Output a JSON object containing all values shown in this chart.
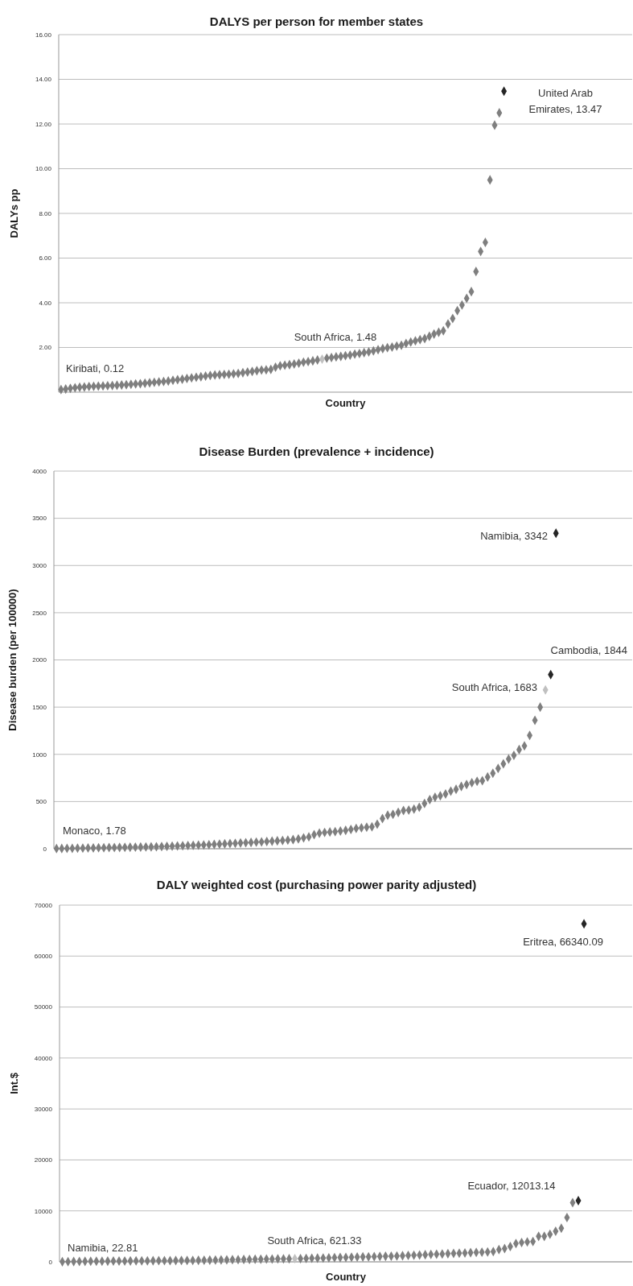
{
  "chart_data": [
    {
      "type": "scatter",
      "title": "DALYS per person for member states",
      "xlabel": "Country",
      "ylabel": "DALYs pp",
      "marker": "diamond",
      "grid": "y",
      "tick_labels": "y",
      "ylim": [
        0,
        16
      ],
      "yticks": [
        {
          "value": 2,
          "label": "2.00"
        },
        {
          "value": 4,
          "label": "4.00"
        },
        {
          "value": 6,
          "label": "6.00"
        },
        {
          "value": 8,
          "label": "8.00"
        },
        {
          "value": 10,
          "label": "10.00"
        },
        {
          "value": 12,
          "label": "12.00"
        },
        {
          "value": 14,
          "label": "14.00"
        },
        {
          "value": 16,
          "label": "16.00"
        }
      ],
      "categories": [
        null,
        null,
        null,
        null,
        null,
        null,
        null,
        null,
        null,
        null,
        null,
        null,
        null,
        null,
        null,
        null,
        null,
        null,
        null,
        null,
        null,
        null,
        null,
        null,
        null,
        null,
        null,
        null,
        null,
        null,
        null,
        null,
        null,
        null,
        null,
        null,
        null,
        null,
        null,
        null,
        null,
        null,
        null,
        null,
        null,
        null,
        null,
        null,
        null,
        null,
        null,
        null,
        null,
        null,
        null,
        null,
        null,
        null,
        null,
        null,
        null,
        null,
        null,
        null,
        null,
        null,
        null,
        null,
        null,
        null,
        null,
        null,
        null,
        null,
        null,
        null,
        null,
        null,
        null,
        null,
        null,
        null,
        null,
        null,
        null,
        null,
        null,
        null,
        null,
        null,
        null,
        null,
        null,
        null,
        null,
        null,
        null,
        null,
        null,
        null,
        null,
        null,
        null,
        null,
        null,
        null,
        null,
        null,
        null,
        null,
        null,
        null,
        null,
        null,
        null,
        null,
        null,
        null,
        null,
        null,
        null,
        null,
        null
      ],
      "series": [
        {
          "color": "#7f7f7f",
          "values": [
            0.12,
            0.14,
            0.17,
            0.2,
            0.22,
            0.23,
            0.25,
            0.26,
            0.27,
            0.28,
            0.29,
            0.3,
            0.31,
            0.32,
            0.33,
            0.35,
            0.37,
            0.38,
            0.4,
            0.42,
            0.44,
            0.46,
            0.48,
            0.5,
            0.53,
            0.56,
            0.58,
            0.61,
            0.64,
            0.67,
            0.69,
            0.72,
            0.75,
            0.77,
            0.78,
            0.79,
            0.8,
            0.82,
            0.84,
            0.87,
            0.9,
            0.93,
            0.96,
            0.99,
            1.0,
            1.02,
            1.12,
            1.18,
            1.21,
            1.23,
            1.26,
            1.3,
            1.34,
            1.37,
            1.4,
            1.44,
            null,
            1.52,
            1.55,
            1.58,
            1.6,
            1.63,
            1.66,
            1.7,
            1.73,
            1.77,
            1.8,
            1.85,
            1.9,
            1.95,
            1.99,
            2.02,
            2.06,
            2.1,
            2.18,
            2.24,
            2.3,
            2.35,
            2.4,
            2.5,
            2.6,
            2.68,
            2.75,
            3.05,
            3.3,
            3.65,
            3.9,
            4.2,
            4.5,
            5.4,
            6.3,
            6.7,
            9.5,
            11.95,
            12.5,
            null,
            null,
            null,
            null,
            null,
            null,
            null,
            null,
            null,
            null,
            null,
            null,
            null,
            null,
            null,
            null,
            null,
            null,
            null,
            null,
            null,
            null,
            null,
            null,
            null,
            null,
            null,
            null
          ]
        },
        {
          "color": "#c0c0c0",
          "values": [
            null,
            null,
            null,
            null,
            null,
            null,
            null,
            null,
            null,
            null,
            null,
            null,
            null,
            null,
            null,
            null,
            null,
            null,
            null,
            null,
            null,
            null,
            null,
            null,
            null,
            null,
            null,
            null,
            null,
            null,
            null,
            null,
            null,
            null,
            null,
            null,
            null,
            null,
            null,
            null,
            null,
            null,
            null,
            null,
            null,
            null,
            null,
            null,
            null,
            null,
            null,
            null,
            null,
            null,
            null,
            null,
            1.48,
            null,
            null,
            null,
            null,
            null,
            null,
            null,
            null,
            null,
            null,
            null,
            null,
            null,
            null,
            null,
            null,
            null,
            null,
            null,
            null,
            null,
            null,
            null,
            null,
            null,
            null,
            null,
            null,
            null,
            null,
            null,
            null,
            null,
            null,
            null,
            null,
            null,
            null,
            null,
            null,
            null,
            null,
            null,
            null,
            null,
            null,
            null,
            null,
            null,
            null,
            null,
            null,
            null,
            null,
            null,
            null,
            null,
            null,
            null,
            null,
            null,
            null,
            null,
            null,
            null,
            null
          ]
        },
        {
          "color": "#262626",
          "values": [
            null,
            null,
            null,
            null,
            null,
            null,
            null,
            null,
            null,
            null,
            null,
            null,
            null,
            null,
            null,
            null,
            null,
            null,
            null,
            null,
            null,
            null,
            null,
            null,
            null,
            null,
            null,
            null,
            null,
            null,
            null,
            null,
            null,
            null,
            null,
            null,
            null,
            null,
            null,
            null,
            null,
            null,
            null,
            null,
            null,
            null,
            null,
            null,
            null,
            null,
            null,
            null,
            null,
            null,
            null,
            null,
            null,
            null,
            null,
            null,
            null,
            null,
            null,
            null,
            null,
            null,
            null,
            null,
            null,
            null,
            null,
            null,
            null,
            null,
            null,
            null,
            null,
            null,
            null,
            null,
            null,
            null,
            null,
            null,
            null,
            null,
            null,
            null,
            null,
            null,
            null,
            null,
            null,
            null,
            null,
            13.47,
            null,
            null,
            null,
            null,
            null,
            null,
            null,
            null,
            null,
            null,
            null,
            null,
            null,
            null,
            null,
            null,
            null,
            null,
            null,
            null,
            null,
            null,
            null,
            null,
            null,
            null,
            null
          ]
        }
      ],
      "annotations": [
        "Kiribati,  0.12",
        "South Africa,  1.48",
        "United Arab Emirates,  13.47"
      ]
    },
    {
      "type": "scatter",
      "title": "Disease Burden (prevalence + incidence)",
      "ylabel": "Disease burden (per 100000)",
      "marker": "diamond",
      "grid": "y",
      "tick_labels": "y",
      "ylim": [
        0,
        4000
      ],
      "yticks": [
        0,
        500,
        1000,
        1500,
        2000,
        2500,
        3000,
        3500,
        4000
      ],
      "categories": [
        null,
        null,
        null,
        null,
        null,
        null,
        null,
        null,
        null,
        null,
        null,
        null,
        null,
        null,
        null,
        null,
        null,
        null,
        null,
        null,
        null,
        null,
        null,
        null,
        null,
        null,
        null,
        null,
        null,
        null,
        null,
        null,
        null,
        null,
        null,
        null,
        null,
        null,
        null,
        null,
        null,
        null,
        null,
        null,
        null,
        null,
        null,
        null,
        null,
        null,
        null,
        null,
        null,
        null,
        null,
        null,
        null,
        null,
        null,
        null,
        null,
        null,
        null,
        null,
        null,
        null,
        null,
        null,
        null,
        null,
        null,
        null,
        null,
        null,
        null,
        null,
        null,
        null,
        null,
        null,
        null,
        null,
        null,
        null,
        null,
        null,
        null,
        null,
        null,
        null,
        null,
        null,
        null,
        null,
        null,
        null,
        null,
        null,
        null,
        null,
        null,
        null,
        null,
        null,
        null,
        null,
        null,
        null,
        null,
        null
      ],
      "series": [
        {
          "color": "#7f7f7f",
          "values": [
            1.78,
            3,
            4,
            5,
            6,
            7,
            8,
            9,
            10,
            11,
            12,
            13,
            14,
            15,
            16,
            17,
            18,
            19,
            20,
            22,
            24,
            26,
            28,
            30,
            32,
            34,
            36,
            38,
            40,
            43,
            46,
            49,
            52,
            55,
            58,
            61,
            64,
            67,
            70,
            73,
            76,
            80,
            84,
            88,
            92,
            97,
            105,
            115,
            125,
            150,
            165,
            172,
            178,
            182,
            188,
            195,
            205,
            215,
            222,
            228,
            232,
            260,
            320,
            355,
            365,
            385,
            405,
            410,
            420,
            440,
            480,
            520,
            545,
            560,
            580,
            610,
            630,
            660,
            680,
            700,
            715,
            720,
            760,
            800,
            850,
            900,
            950,
            990,
            1050,
            1090,
            1200,
            1360,
            1500,
            null,
            null,
            null,
            null,
            null,
            null,
            null,
            null,
            null,
            null,
            null,
            null,
            null,
            null,
            null,
            null,
            null
          ]
        },
        {
          "color": "#c0c0c0",
          "values": [
            null,
            null,
            null,
            null,
            null,
            null,
            null,
            null,
            null,
            null,
            null,
            null,
            null,
            null,
            null,
            null,
            null,
            null,
            null,
            null,
            null,
            null,
            null,
            null,
            null,
            null,
            null,
            null,
            null,
            null,
            null,
            null,
            null,
            null,
            null,
            null,
            null,
            null,
            null,
            null,
            null,
            null,
            null,
            null,
            null,
            null,
            null,
            null,
            null,
            null,
            null,
            null,
            null,
            null,
            null,
            null,
            null,
            null,
            null,
            null,
            null,
            null,
            null,
            null,
            null,
            null,
            null,
            null,
            null,
            null,
            null,
            null,
            null,
            null,
            null,
            null,
            null,
            null,
            null,
            null,
            null,
            null,
            null,
            null,
            null,
            null,
            null,
            null,
            null,
            null,
            null,
            null,
            null,
            1683,
            null,
            null,
            null,
            null,
            null,
            null,
            null,
            null,
            null,
            null,
            null,
            null,
            null,
            null,
            null,
            null
          ]
        },
        {
          "color": "#262626",
          "values": [
            null,
            null,
            null,
            null,
            null,
            null,
            null,
            null,
            null,
            null,
            null,
            null,
            null,
            null,
            null,
            null,
            null,
            null,
            null,
            null,
            null,
            null,
            null,
            null,
            null,
            null,
            null,
            null,
            null,
            null,
            null,
            null,
            null,
            null,
            null,
            null,
            null,
            null,
            null,
            null,
            null,
            null,
            null,
            null,
            null,
            null,
            null,
            null,
            null,
            null,
            null,
            null,
            null,
            null,
            null,
            null,
            null,
            null,
            null,
            null,
            null,
            null,
            null,
            null,
            null,
            null,
            null,
            null,
            null,
            null,
            null,
            null,
            null,
            null,
            null,
            null,
            null,
            null,
            null,
            null,
            null,
            null,
            null,
            null,
            null,
            null,
            null,
            null,
            null,
            null,
            null,
            null,
            null,
            null,
            1844,
            3342,
            null,
            null,
            null,
            null,
            null,
            null,
            null,
            null,
            null,
            null,
            null,
            null,
            null,
            null
          ]
        }
      ],
      "annotations": [
        "Monaco, 1.78",
        "Namibia, 3342",
        "South Africa, 1683",
        "Cambodia, 1844"
      ]
    },
    {
      "type": "scatter",
      "title": "DALY weighted cost (purchasing power parity adjusted)",
      "xlabel": "Country",
      "ylabel": "Int.$",
      "marker": "diamond",
      "grid": "y",
      "tick_labels": "y",
      "ylim": [
        0,
        70000
      ],
      "yticks": [
        0,
        10000,
        20000,
        30000,
        40000,
        50000,
        60000,
        70000
      ],
      "categories": [
        null,
        null,
        null,
        null,
        null,
        null,
        null,
        null,
        null,
        null,
        null,
        null,
        null,
        null,
        null,
        null,
        null,
        null,
        null,
        null,
        null,
        null,
        null,
        null,
        null,
        null,
        null,
        null,
        null,
        null,
        null,
        null,
        null,
        null,
        null,
        null,
        null,
        null,
        null,
        null,
        null,
        null,
        null,
        null,
        null,
        null,
        null,
        null,
        null,
        null,
        null,
        null,
        null,
        null,
        null,
        null,
        null,
        null,
        null,
        null,
        null,
        null,
        null,
        null,
        null,
        null,
        null,
        null,
        null,
        null,
        null,
        null,
        null,
        null,
        null,
        null,
        null,
        null,
        null,
        null,
        null,
        null,
        null,
        null,
        null,
        null,
        null,
        null,
        null,
        null,
        null,
        null,
        null,
        null,
        null,
        null,
        null,
        null,
        null,
        null,
        null
      ],
      "series": [
        {
          "color": "#7f7f7f",
          "values": [
            22.81,
            40,
            60,
            80,
            100,
            110,
            120,
            130,
            140,
            150,
            160,
            170,
            180,
            190,
            200,
            210,
            220,
            230,
            240,
            250,
            260,
            270,
            280,
            290,
            300,
            320,
            340,
            360,
            380,
            400,
            420,
            440,
            460,
            480,
            500,
            520,
            540,
            560,
            580,
            600,
            610,
            null,
            640,
            670,
            700,
            730,
            760,
            790,
            820,
            850,
            880,
            910,
            940,
            970,
            1000,
            1030,
            1060,
            1090,
            1120,
            1150,
            1200,
            1250,
            1300,
            1350,
            1400,
            1450,
            1500,
            1550,
            1600,
            1650,
            1700,
            1750,
            1800,
            1850,
            1900,
            1950,
            2000,
            2400,
            2600,
            3000,
            3600,
            3800,
            3900,
            4000,
            5000,
            5000,
            5400,
            6000,
            6600,
            8700,
            11600,
            null,
            null,
            null,
            null,
            null,
            null,
            null,
            null,
            null,
            null
          ]
        },
        {
          "color": "#c0c0c0",
          "values": [
            null,
            null,
            null,
            null,
            null,
            null,
            null,
            null,
            null,
            null,
            null,
            null,
            null,
            null,
            null,
            null,
            null,
            null,
            null,
            null,
            null,
            null,
            null,
            null,
            null,
            null,
            null,
            null,
            null,
            null,
            null,
            null,
            null,
            null,
            null,
            null,
            null,
            null,
            null,
            null,
            null,
            621.33,
            null,
            null,
            null,
            null,
            null,
            null,
            null,
            null,
            null,
            null,
            null,
            null,
            null,
            null,
            null,
            null,
            null,
            null,
            null,
            null,
            null,
            null,
            null,
            null,
            null,
            null,
            null,
            null,
            null,
            null,
            null,
            null,
            null,
            null,
            null,
            null,
            null,
            null,
            null,
            null,
            null,
            null,
            null,
            null,
            null,
            null,
            null,
            null,
            null,
            null,
            null,
            null,
            null,
            null,
            null,
            null,
            null,
            null,
            null
          ]
        },
        {
          "color": "#262626",
          "values": [
            null,
            null,
            null,
            null,
            null,
            null,
            null,
            null,
            null,
            null,
            null,
            null,
            null,
            null,
            null,
            null,
            null,
            null,
            null,
            null,
            null,
            null,
            null,
            null,
            null,
            null,
            null,
            null,
            null,
            null,
            null,
            null,
            null,
            null,
            null,
            null,
            null,
            null,
            null,
            null,
            null,
            null,
            null,
            null,
            null,
            null,
            null,
            null,
            null,
            null,
            null,
            null,
            null,
            null,
            null,
            null,
            null,
            null,
            null,
            null,
            null,
            null,
            null,
            null,
            null,
            null,
            null,
            null,
            null,
            null,
            null,
            null,
            null,
            null,
            null,
            null,
            null,
            null,
            null,
            null,
            null,
            null,
            null,
            null,
            null,
            null,
            null,
            null,
            null,
            null,
            null,
            12013.14,
            66340.09,
            null,
            null,
            null,
            null,
            null,
            null,
            null,
            null
          ]
        }
      ],
      "annotations": [
        "Namibia, 22.81",
        "South Africa, 621.33",
        "Ecuador, 12013.14",
        "Eritrea, 66340.09"
      ]
    }
  ]
}
